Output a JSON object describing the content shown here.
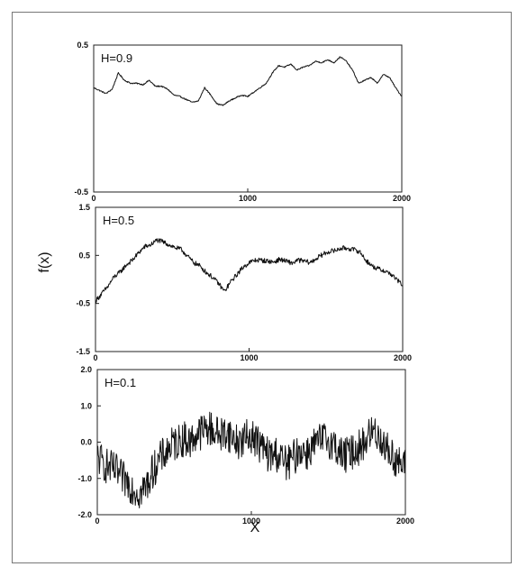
{
  "chart_data": {
    "type": "line",
    "ylabel": "f(x)",
    "xlabel": "X",
    "panels": [
      {
        "label": "H=0.9",
        "xlim": [
          0,
          2000
        ],
        "ylim": [
          -0.5,
          0.5
        ],
        "xticks": [
          "0",
          "1000",
          "2000"
        ],
        "yticks": [
          {
            "value": 0.5,
            "label": "0.5"
          },
          {
            "value": -0.5,
            "label": "-0.5"
          }
        ],
        "series": [
          {
            "color": "#111111",
            "noise": 0.004,
            "x": [
              0,
              40,
              80,
              120,
              160,
              200,
              240,
              280,
              320,
              360,
              400,
              440,
              480,
              520,
              560,
              600,
              640,
              680,
              720,
              760,
              800,
              840,
              880,
              920,
              960,
              1000,
              1040,
              1080,
              1120,
              1160,
              1200,
              1240,
              1280,
              1320,
              1360,
              1400,
              1440,
              1480,
              1520,
              1560,
              1600,
              1640,
              1680,
              1720,
              1760,
              1800,
              1840,
              1880,
              1920,
              1960,
              2000
            ],
            "y": [
              0.21,
              0.19,
              0.17,
              0.2,
              0.31,
              0.26,
              0.24,
              0.24,
              0.23,
              0.26,
              0.22,
              0.22,
              0.2,
              0.16,
              0.15,
              0.13,
              0.11,
              0.12,
              0.21,
              0.16,
              0.1,
              0.09,
              0.12,
              0.14,
              0.16,
              0.15,
              0.18,
              0.21,
              0.24,
              0.31,
              0.36,
              0.35,
              0.37,
              0.33,
              0.35,
              0.36,
              0.39,
              0.38,
              0.4,
              0.38,
              0.42,
              0.39,
              0.33,
              0.24,
              0.26,
              0.28,
              0.24,
              0.3,
              0.28,
              0.21,
              0.15
            ]
          }
        ]
      },
      {
        "label": "H=0.5",
        "xlim": [
          0,
          2000
        ],
        "ylim": [
          -1.5,
          1.5
        ],
        "xticks": [
          "0",
          "1000",
          "2000"
        ],
        "yticks": [
          {
            "value": 1.5,
            "label": "1.5"
          },
          {
            "value": 0.5,
            "label": "0.5"
          },
          {
            "value": -0.5,
            "label": "-0.5"
          },
          {
            "value": -1.5,
            "label": "-1.5"
          }
        ],
        "series": [
          {
            "color": "#111111",
            "noise": 0.05,
            "x": [
              0,
              40,
              80,
              120,
              160,
              200,
              240,
              280,
              320,
              360,
              400,
              440,
              480,
              520,
              560,
              600,
              640,
              680,
              720,
              760,
              800,
              840,
              880,
              920,
              960,
              1000,
              1040,
              1080,
              1120,
              1160,
              1200,
              1240,
              1280,
              1320,
              1360,
              1400,
              1440,
              1480,
              1520,
              1560,
              1600,
              1640,
              1680,
              1720,
              1760,
              1800,
              1840,
              1880,
              1920,
              1960,
              2000
            ],
            "y": [
              -0.45,
              -0.3,
              -0.15,
              0.05,
              0.15,
              0.3,
              0.4,
              0.55,
              0.68,
              0.72,
              0.82,
              0.78,
              0.72,
              0.66,
              0.62,
              0.48,
              0.35,
              0.28,
              0.15,
              0.05,
              -0.08,
              -0.25,
              -0.05,
              0.1,
              0.25,
              0.35,
              0.4,
              0.4,
              0.38,
              0.36,
              0.42,
              0.38,
              0.34,
              0.4,
              0.38,
              0.35,
              0.44,
              0.52,
              0.58,
              0.6,
              0.65,
              0.65,
              0.62,
              0.58,
              0.4,
              0.28,
              0.22,
              0.18,
              0.12,
              0.0,
              -0.12
            ]
          }
        ]
      },
      {
        "label": "H=0.1",
        "xlim": [
          0,
          2000
        ],
        "ylim": [
          -2.0,
          2.0
        ],
        "xticks": [
          "0",
          "1000",
          "2000"
        ],
        "yticks": [
          {
            "value": 2.0,
            "label": "2.0"
          },
          {
            "value": 1.0,
            "label": "1.0"
          },
          {
            "value": 0.0,
            "label": "0.0"
          },
          {
            "value": -1.0,
            "label": "-1.0"
          },
          {
            "value": -2.0,
            "label": "-2.0"
          }
        ],
        "series": [
          {
            "color": "#111111",
            "noise": 0.5,
            "x": [
              0,
              40,
              80,
              120,
              160,
              200,
              240,
              280,
              320,
              360,
              400,
              440,
              480,
              520,
              560,
              600,
              640,
              680,
              720,
              760,
              800,
              840,
              880,
              920,
              960,
              1000,
              1040,
              1080,
              1120,
              1160,
              1200,
              1240,
              1280,
              1320,
              1360,
              1400,
              1440,
              1480,
              1520,
              1560,
              1600,
              1640,
              1680,
              1720,
              1760,
              1800,
              1840,
              1880,
              1920,
              1960,
              2000
            ],
            "y": [
              -0.4,
              -0.6,
              -0.7,
              -0.8,
              -1.0,
              -1.1,
              -1.3,
              -1.4,
              -1.2,
              -0.8,
              -0.5,
              -0.3,
              -0.1,
              0.0,
              0.1,
              0.0,
              0.2,
              0.3,
              0.4,
              0.3,
              0.2,
              0.3,
              0.1,
              0.0,
              0.1,
              0.2,
              0.0,
              -0.2,
              -0.4,
              -0.3,
              -0.5,
              -0.6,
              -0.4,
              -0.2,
              -0.3,
              -0.1,
              0.0,
              0.1,
              0.0,
              -0.2,
              -0.4,
              -0.3,
              -0.2,
              -0.1,
              0.2,
              0.3,
              0.1,
              -0.2,
              -0.4,
              -0.6,
              -0.7
            ]
          }
        ]
      }
    ]
  }
}
